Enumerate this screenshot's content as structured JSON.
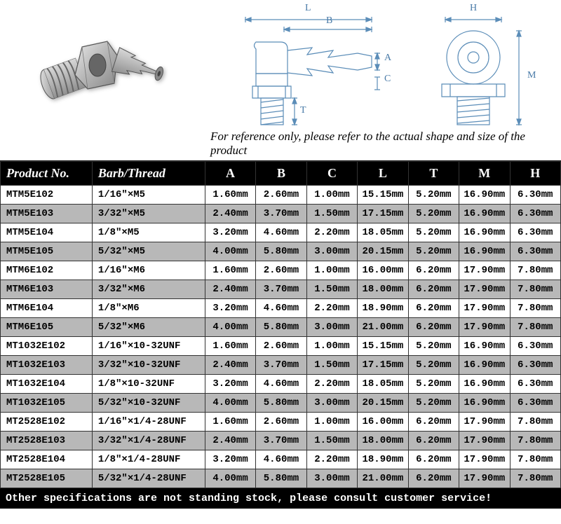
{
  "reference_note": "For reference only, please refer to the actual shape and size of the product",
  "footer_note": "Other specifications are not standing stock, please consult customer service!",
  "dim_labels": {
    "L": "L",
    "B": "B",
    "A": "A",
    "C": "C",
    "T": "T",
    "H": "H",
    "M": "M"
  },
  "table": {
    "columns": [
      "Product No.",
      "Barb/Thread",
      "A",
      "B",
      "C",
      "L",
      "T",
      "M",
      "H"
    ],
    "rows": [
      [
        "MTM5E102",
        "1/16\"×M5",
        "1.60mm",
        "2.60mm",
        "1.00mm",
        "15.15mm",
        "5.20mm",
        "16.90mm",
        "6.30mm"
      ],
      [
        "MTM5E103",
        "3/32\"×M5",
        "2.40mm",
        "3.70mm",
        "1.50mm",
        "17.15mm",
        "5.20mm",
        "16.90mm",
        "6.30mm"
      ],
      [
        "MTM5E104",
        "1/8\"×M5",
        "3.20mm",
        "4.60mm",
        "2.20mm",
        "18.05mm",
        "5.20mm",
        "16.90mm",
        "6.30mm"
      ],
      [
        "MTM5E105",
        "5/32\"×M5",
        "4.00mm",
        "5.80mm",
        "3.00mm",
        "20.15mm",
        "5.20mm",
        "16.90mm",
        "6.30mm"
      ],
      [
        "MTM6E102",
        "1/16\"×M6",
        "1.60mm",
        "2.60mm",
        "1.00mm",
        "16.00mm",
        "6.20mm",
        "17.90mm",
        "7.80mm"
      ],
      [
        "MTM6E103",
        "3/32\"×M6",
        "2.40mm",
        "3.70mm",
        "1.50mm",
        "18.00mm",
        "6.20mm",
        "17.90mm",
        "7.80mm"
      ],
      [
        "MTM6E104",
        "1/8\"×M6",
        "3.20mm",
        "4.60mm",
        "2.20mm",
        "18.90mm",
        "6.20mm",
        "17.90mm",
        "7.80mm"
      ],
      [
        "MTM6E105",
        "5/32\"×M6",
        "4.00mm",
        "5.80mm",
        "3.00mm",
        "21.00mm",
        "6.20mm",
        "17.90mm",
        "7.80mm"
      ],
      [
        "MT1032E102",
        "1/16\"×10-32UNF",
        "1.60mm",
        "2.60mm",
        "1.00mm",
        "15.15mm",
        "5.20mm",
        "16.90mm",
        "6.30mm"
      ],
      [
        "MT1032E103",
        "3/32\"×10-32UNF",
        "2.40mm",
        "3.70mm",
        "1.50mm",
        "17.15mm",
        "5.20mm",
        "16.90mm",
        "6.30mm"
      ],
      [
        "MT1032E104",
        "1/8\"×10-32UNF",
        "3.20mm",
        "4.60mm",
        "2.20mm",
        "18.05mm",
        "5.20mm",
        "16.90mm",
        "6.30mm"
      ],
      [
        "MT1032E105",
        "5/32\"×10-32UNF",
        "4.00mm",
        "5.80mm",
        "3.00mm",
        "20.15mm",
        "5.20mm",
        "16.90mm",
        "6.30mm"
      ],
      [
        "MT2528E102",
        "1/16\"×1/4-28UNF",
        "1.60mm",
        "2.60mm",
        "1.00mm",
        "16.00mm",
        "6.20mm",
        "17.90mm",
        "7.80mm"
      ],
      [
        "MT2528E103",
        "3/32\"×1/4-28UNF",
        "2.40mm",
        "3.70mm",
        "1.50mm",
        "18.00mm",
        "6.20mm",
        "17.90mm",
        "7.80mm"
      ],
      [
        "MT2528E104",
        "1/8\"×1/4-28UNF",
        "3.20mm",
        "4.60mm",
        "2.20mm",
        "18.90mm",
        "6.20mm",
        "17.90mm",
        "7.80mm"
      ],
      [
        "MT2528E105",
        "5/32\"×1/4-28UNF",
        "4.00mm",
        "5.80mm",
        "3.00mm",
        "21.00mm",
        "6.20mm",
        "17.90mm",
        "7.80mm"
      ]
    ]
  },
  "colors": {
    "header_bg": "#000000",
    "header_fg": "#ffffff",
    "row_odd_bg": "#ffffff",
    "row_even_bg": "#b8b8b8",
    "schematic_stroke": "#5b8db8"
  }
}
